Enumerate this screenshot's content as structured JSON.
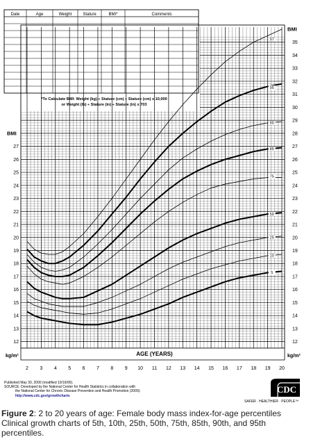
{
  "header_table": {
    "columns": [
      "Date",
      "Age",
      "Weight",
      "Stature",
      "BMI*",
      "Comments"
    ]
  },
  "formula": {
    "line1": "*To Calculate BMI: Weight (kg) ÷ Stature (cm) ÷ Stature (cm) x 10,000",
    "line2": "or Weight (lb) ÷ Stature (in) ÷ Stature (in) x 703"
  },
  "source": {
    "line1": "Published May 30, 2000 (modified 10/16/00).",
    "line2": "SOURCE: Developed by the National Center for Health Statistics in collaboration with",
    "line3": "the National Center for Chronic Disease Prevention and Health Promotion (2000).",
    "line4": "http://www.cdc.gov/growthcharts"
  },
  "logo": {
    "text": "CDC",
    "tagline": "SAFER · HEALTHIER · PEOPLE™"
  },
  "caption": {
    "label": "Figure 2",
    "text": ": 2 to 20 years of age: Female body mass index-for-age percentiles Clinical growth charts of 5th, 10th, 25th, 50th, 75th, 85th, 90th, and 95th percentiles."
  },
  "chart_data": {
    "type": "line",
    "xlabel": "AGE (YEARS)",
    "ylabel": "BMI",
    "unit_label": "kg/m²",
    "xlim": [
      2,
      20
    ],
    "ylim": [
      11.5,
      36
    ],
    "x_ticks": [
      2,
      3,
      4,
      5,
      6,
      7,
      8,
      9,
      10,
      11,
      12,
      13,
      14,
      15,
      16,
      17,
      18,
      19,
      20
    ],
    "y_ticks_left": [
      12,
      13,
      14,
      15,
      16,
      17,
      18,
      19,
      20,
      21,
      22,
      23,
      24,
      25,
      26,
      27
    ],
    "y_ticks_right": [
      12,
      13,
      14,
      15,
      16,
      17,
      18,
      19,
      20,
      21,
      22,
      23,
      24,
      25,
      26,
      27,
      28,
      29,
      30,
      31,
      32,
      33,
      34,
      35
    ],
    "grid": true,
    "x": [
      2,
      2.5,
      3,
      3.5,
      4,
      4.5,
      5,
      6,
      7,
      8,
      9,
      10,
      11,
      12,
      13,
      14,
      15,
      16,
      17,
      18,
      19,
      20
    ],
    "series": [
      {
        "name": "97",
        "heavy": false,
        "values": [
          19.7,
          19.1,
          18.8,
          18.7,
          18.7,
          18.9,
          19.3,
          20.3,
          21.6,
          23.0,
          24.5,
          26.0,
          27.5,
          28.9,
          30.2,
          31.4,
          32.5,
          33.5,
          34.3,
          35.0,
          35.5,
          36.0
        ]
      },
      {
        "name": "95",
        "heavy": true,
        "values": [
          19.1,
          18.5,
          18.2,
          18.0,
          18.0,
          18.2,
          18.5,
          19.4,
          20.5,
          21.8,
          23.1,
          24.5,
          25.8,
          27.0,
          28.0,
          28.9,
          29.7,
          30.4,
          30.9,
          31.3,
          31.6,
          31.8
        ]
      },
      {
        "name": "90",
        "heavy": false,
        "values": [
          18.7,
          18.1,
          17.7,
          17.5,
          17.4,
          17.5,
          17.7,
          18.5,
          19.5,
          20.6,
          21.8,
          23.0,
          24.1,
          25.2,
          26.1,
          26.8,
          27.4,
          27.9,
          28.3,
          28.6,
          28.8,
          28.9
        ]
      },
      {
        "name": "85",
        "heavy": true,
        "values": [
          18.3,
          17.7,
          17.3,
          17.1,
          17.0,
          17.0,
          17.1,
          17.7,
          18.6,
          19.6,
          20.7,
          21.8,
          22.8,
          23.7,
          24.5,
          25.1,
          25.6,
          26.0,
          26.3,
          26.6,
          26.8,
          26.9
        ]
      },
      {
        "name": "75",
        "heavy": false,
        "values": [
          17.8,
          17.2,
          16.8,
          16.6,
          16.5,
          16.4,
          16.5,
          17.0,
          17.7,
          18.5,
          19.4,
          20.3,
          21.2,
          22.0,
          22.7,
          23.3,
          23.8,
          24.1,
          24.3,
          24.5,
          24.6,
          24.6
        ]
      },
      {
        "name": "50",
        "heavy": true,
        "values": [
          16.6,
          16.1,
          15.8,
          15.6,
          15.4,
          15.3,
          15.3,
          15.4,
          15.9,
          16.4,
          17.1,
          17.8,
          18.5,
          19.2,
          19.8,
          20.3,
          20.7,
          21.1,
          21.4,
          21.6,
          21.8,
          21.9
        ]
      },
      {
        "name": "25",
        "heavy": false,
        "values": [
          15.7,
          15.3,
          15.1,
          14.9,
          14.8,
          14.7,
          14.7,
          14.7,
          15.0,
          15.4,
          15.9,
          16.4,
          17.0,
          17.6,
          18.1,
          18.5,
          18.9,
          19.3,
          19.6,
          19.8,
          20.0,
          20.1
        ]
      },
      {
        "name": "10",
        "heavy": false,
        "values": [
          15.1,
          14.8,
          14.6,
          14.5,
          14.4,
          14.3,
          14.2,
          14.1,
          14.2,
          14.5,
          14.9,
          15.3,
          15.8,
          16.3,
          16.8,
          17.2,
          17.6,
          17.9,
          18.2,
          18.4,
          18.6,
          18.7
        ]
      },
      {
        "name": "5",
        "heavy": true,
        "values": [
          14.3,
          14.0,
          13.8,
          13.7,
          13.6,
          13.5,
          13.4,
          13.3,
          13.3,
          13.5,
          13.8,
          14.1,
          14.5,
          14.9,
          15.4,
          15.8,
          16.2,
          16.6,
          16.9,
          17.1,
          17.3,
          17.4
        ]
      }
    ]
  }
}
